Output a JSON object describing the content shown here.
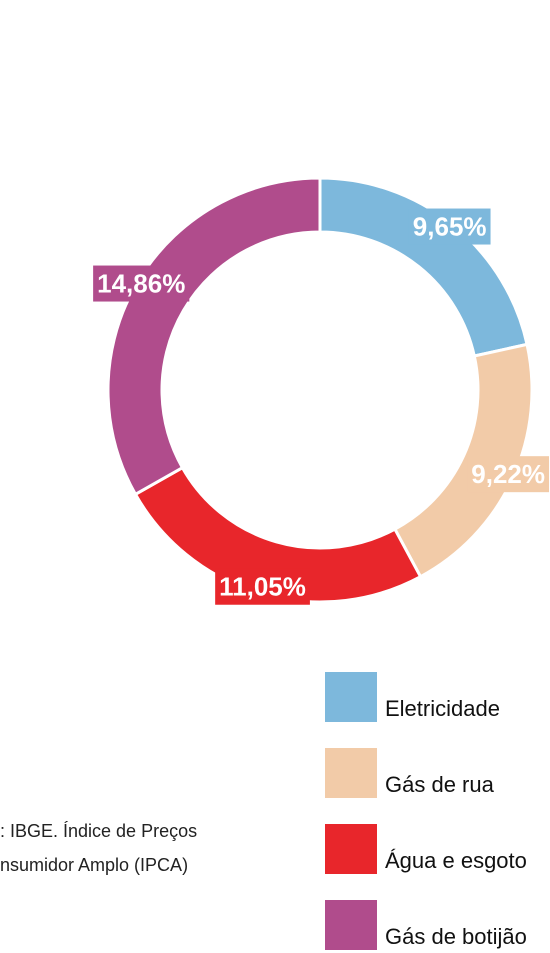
{
  "chart_data": {
    "type": "donut",
    "categories": [
      "Eletricidade",
      "Gás de rua",
      "Água e esgoto",
      "Gás de botijão"
    ],
    "values": [
      9.65,
      9.22,
      11.05,
      14.86
    ],
    "value_labels": [
      "9,65%",
      "9,22%",
      "11,05%",
      "14,86%"
    ],
    "colors": [
      "#7db8dc",
      "#f2cba8",
      "#e8262b",
      "#b04c8c"
    ],
    "source": [
      ": IBGE. Índice de Preços",
      "nsumidor Amplo (IPCA)"
    ]
  }
}
